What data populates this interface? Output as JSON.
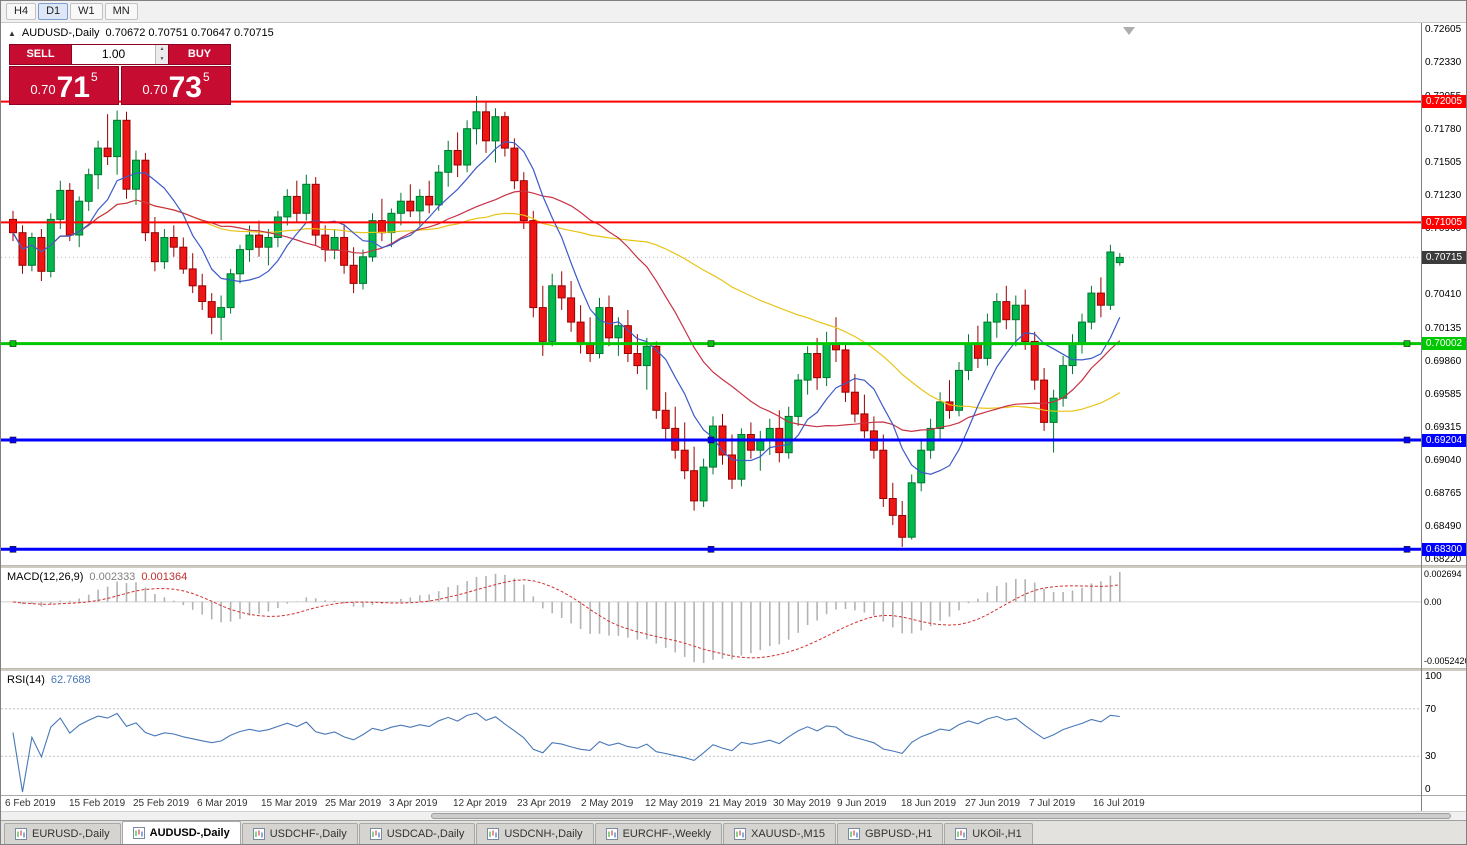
{
  "toolbar": {
    "timeframes": [
      "H4",
      "D1",
      "W1",
      "MN"
    ],
    "active": "D1"
  },
  "chart": {
    "collapse_glyph": "▲",
    "symbol_title": "AUDUSD-,Daily",
    "ohlc": "0.70672 0.70751 0.70647 0.70715"
  },
  "trade_panel": {
    "sell_label": "SELL",
    "buy_label": "BUY",
    "volume": "1.00",
    "sell_price": {
      "prefix": "0.70",
      "big": "71",
      "sup": "5"
    },
    "buy_price": {
      "prefix": "0.70",
      "big": "73",
      "sup": "5"
    },
    "panel_color": "#c60c30"
  },
  "price_axis": {
    "labels": [
      "0.72605",
      "0.72330",
      "0.72055",
      "0.71780",
      "0.71505",
      "0.71230",
      "0.70960",
      "0.70685",
      "0.70410",
      "0.70135",
      "0.69860",
      "0.69585",
      "0.69315",
      "0.69040",
      "0.68765",
      "0.68490",
      "0.68220"
    ]
  },
  "hlines": [
    {
      "label": "0.72005",
      "price": 0.72005,
      "color": "#FF0000",
      "width": 2,
      "handles": false
    },
    {
      "label": "0.71005",
      "price": 0.71005,
      "color": "#FF0000",
      "width": 2,
      "handles": false
    },
    {
      "label": "0.70002",
      "price": 0.70002,
      "color": "#00C800",
      "width": 3,
      "handles": true
    },
    {
      "label": "0.69204",
      "price": 0.69204,
      "color": "#0000FF",
      "width": 3,
      "handles": true
    },
    {
      "label": "0.68300",
      "price": 0.683,
      "color": "#0000FF",
      "width": 3,
      "handles": true
    }
  ],
  "current_price": {
    "label": "0.70715",
    "value": 0.70715,
    "badge_color": "#3c3c3c"
  },
  "indicators": {
    "macd": {
      "name": "MACD(12,26,9)",
      "main": "0.002333",
      "signal": "0.001364",
      "axis_top": "0.002694",
      "axis_zero": "0.00",
      "axis_bottom": "-0.0052420"
    },
    "rsi": {
      "name": "RSI(14)",
      "value": "62.7688",
      "axis": [
        "100",
        "70",
        "30",
        "0"
      ],
      "levels": [
        70,
        30
      ]
    }
  },
  "time_axis": [
    "6 Feb 2019",
    "15 Feb 2019",
    "25 Feb 2019",
    "6 Mar 2019",
    "15 Mar 2019",
    "25 Mar 2019",
    "3 Apr 2019",
    "12 Apr 2019",
    "23 Apr 2019",
    "2 May 2019",
    "12 May 2019",
    "21 May 2019",
    "30 May 2019",
    "9 Jun 2019",
    "18 Jun 2019",
    "27 Jun 2019",
    "7 Jul 2019",
    "16 Jul 2019"
  ],
  "tabs": [
    {
      "label": "EURUSD-,Daily",
      "active": false
    },
    {
      "label": "AUDUSD-,Daily",
      "active": true
    },
    {
      "label": "USDCHF-,Daily",
      "active": false
    },
    {
      "label": "USDCAD-,Daily",
      "active": false
    },
    {
      "label": "USDCNH-,Daily",
      "active": false
    },
    {
      "label": "EURCHF-,Weekly",
      "active": false
    },
    {
      "label": "XAUUSD-,M15",
      "active": false
    },
    {
      "label": "GBPUSD-,H1",
      "active": false
    },
    {
      "label": "UKOil-,H1",
      "active": false
    }
  ],
  "colors": {
    "bull": "#00B84C",
    "bull_border": "#00772E",
    "bear": "#EE1515",
    "bear_border": "#990000",
    "ma_fast": "#3C5AC8",
    "ma_mid": "#C83245",
    "ma_slow": "#E8C419",
    "macd_hist": "#B3B3B3",
    "macd_signal": "#D03030",
    "rsi": "#4878B8"
  },
  "chart_data": {
    "type": "candlestick",
    "symbol": "AUDUSD",
    "timeframe": "Daily",
    "price_range": {
      "min": 0.6817,
      "max": 0.72655
    },
    "ma": {
      "fast": 8,
      "mid": 20,
      "slow": 45
    },
    "macd_params": [
      12,
      26,
      9
    ],
    "rsi_period": 14,
    "hline_levels": [
      0.72005,
      0.71005,
      0.70002,
      0.69204,
      0.683
    ],
    "candles": [
      [
        0.7103,
        0.711,
        0.7085,
        0.7092
      ],
      [
        0.7092,
        0.7098,
        0.7058,
        0.7065
      ],
      [
        0.7065,
        0.7092,
        0.706,
        0.7088
      ],
      [
        0.7088,
        0.7095,
        0.7052,
        0.706
      ],
      [
        0.706,
        0.7108,
        0.7055,
        0.7103
      ],
      [
        0.7103,
        0.7135,
        0.7095,
        0.7127
      ],
      [
        0.7127,
        0.7133,
        0.7085,
        0.709
      ],
      [
        0.709,
        0.7122,
        0.708,
        0.7118
      ],
      [
        0.7118,
        0.7145,
        0.711,
        0.714
      ],
      [
        0.714,
        0.7168,
        0.7128,
        0.7162
      ],
      [
        0.7162,
        0.719,
        0.7148,
        0.7155
      ],
      [
        0.7155,
        0.7193,
        0.714,
        0.7185
      ],
      [
        0.7185,
        0.7192,
        0.712,
        0.7128
      ],
      [
        0.7128,
        0.716,
        0.7115,
        0.7152
      ],
      [
        0.7152,
        0.7158,
        0.7085,
        0.7092
      ],
      [
        0.7092,
        0.7105,
        0.706,
        0.7068
      ],
      [
        0.7068,
        0.7095,
        0.7062,
        0.7088
      ],
      [
        0.7088,
        0.7098,
        0.7072,
        0.708
      ],
      [
        0.708,
        0.7088,
        0.7058,
        0.7062
      ],
      [
        0.7062,
        0.7075,
        0.7042,
        0.7048
      ],
      [
        0.7048,
        0.7058,
        0.7028,
        0.7035
      ],
      [
        0.7035,
        0.7042,
        0.7008,
        0.7022
      ],
      [
        0.7022,
        0.704,
        0.7003,
        0.703
      ],
      [
        0.703,
        0.7062,
        0.7025,
        0.7058
      ],
      [
        0.7058,
        0.7082,
        0.705,
        0.7078
      ],
      [
        0.7078,
        0.7098,
        0.7068,
        0.709
      ],
      [
        0.709,
        0.7102,
        0.7072,
        0.708
      ],
      [
        0.708,
        0.7095,
        0.7065,
        0.7088
      ],
      [
        0.7088,
        0.711,
        0.708,
        0.7105
      ],
      [
        0.7105,
        0.7128,
        0.7098,
        0.7122
      ],
      [
        0.7122,
        0.7135,
        0.71,
        0.7108
      ],
      [
        0.7108,
        0.714,
        0.7102,
        0.7132
      ],
      [
        0.7132,
        0.7138,
        0.7082,
        0.709
      ],
      [
        0.709,
        0.7098,
        0.7068,
        0.7078
      ],
      [
        0.7078,
        0.7095,
        0.707,
        0.7088
      ],
      [
        0.7088,
        0.7098,
        0.7058,
        0.7065
      ],
      [
        0.7065,
        0.708,
        0.7042,
        0.705
      ],
      [
        0.705,
        0.7078,
        0.7045,
        0.7072
      ],
      [
        0.7072,
        0.7108,
        0.7068,
        0.7102
      ],
      [
        0.7102,
        0.712,
        0.7085,
        0.7092
      ],
      [
        0.7092,
        0.7112,
        0.708,
        0.7108
      ],
      [
        0.7108,
        0.7125,
        0.7098,
        0.7118
      ],
      [
        0.7118,
        0.7132,
        0.7105,
        0.711
      ],
      [
        0.711,
        0.7128,
        0.7098,
        0.7122
      ],
      [
        0.7122,
        0.7135,
        0.7108,
        0.7115
      ],
      [
        0.7115,
        0.7148,
        0.711,
        0.7142
      ],
      [
        0.7142,
        0.7168,
        0.713,
        0.716
      ],
      [
        0.716,
        0.7175,
        0.7138,
        0.7148
      ],
      [
        0.7148,
        0.7185,
        0.7142,
        0.7178
      ],
      [
        0.7178,
        0.7205,
        0.7165,
        0.7192
      ],
      [
        0.7192,
        0.72,
        0.7158,
        0.7168
      ],
      [
        0.7168,
        0.7195,
        0.715,
        0.7188
      ],
      [
        0.7188,
        0.7192,
        0.7155,
        0.7162
      ],
      [
        0.7162,
        0.717,
        0.7128,
        0.7135
      ],
      [
        0.7135,
        0.7142,
        0.7095,
        0.7102
      ],
      [
        0.7102,
        0.711,
        0.7022,
        0.703
      ],
      [
        0.703,
        0.7048,
        0.699,
        0.7002
      ],
      [
        0.7002,
        0.7058,
        0.6998,
        0.7048
      ],
      [
        0.7048,
        0.706,
        0.7028,
        0.7038
      ],
      [
        0.7038,
        0.7052,
        0.701,
        0.7018
      ],
      [
        0.7018,
        0.7032,
        0.6992,
        0.7
      ],
      [
        0.7,
        0.7022,
        0.6985,
        0.6992
      ],
      [
        0.6992,
        0.7038,
        0.6988,
        0.703
      ],
      [
        0.703,
        0.704,
        0.6998,
        0.7005
      ],
      [
        0.7005,
        0.7022,
        0.699,
        0.7015
      ],
      [
        0.7015,
        0.7028,
        0.6985,
        0.6992
      ],
      [
        0.6992,
        0.7008,
        0.6975,
        0.6982
      ],
      [
        0.6982,
        0.7005,
        0.6962,
        0.6998
      ],
      [
        0.6998,
        0.7002,
        0.6938,
        0.6945
      ],
      [
        0.6945,
        0.696,
        0.692,
        0.693
      ],
      [
        0.693,
        0.6948,
        0.6905,
        0.6912
      ],
      [
        0.6912,
        0.6935,
        0.6888,
        0.6895
      ],
      [
        0.6895,
        0.6915,
        0.6862,
        0.687
      ],
      [
        0.687,
        0.6905,
        0.6865,
        0.6898
      ],
      [
        0.6898,
        0.694,
        0.6892,
        0.6932
      ],
      [
        0.6932,
        0.6942,
        0.69,
        0.6908
      ],
      [
        0.6908,
        0.6925,
        0.688,
        0.6888
      ],
      [
        0.6888,
        0.693,
        0.6882,
        0.6925
      ],
      [
        0.6925,
        0.6935,
        0.6905,
        0.6912
      ],
      [
        0.6912,
        0.6928,
        0.6895,
        0.692
      ],
      [
        0.692,
        0.6938,
        0.6908,
        0.693
      ],
      [
        0.693,
        0.6945,
        0.6902,
        0.691
      ],
      [
        0.691,
        0.6948,
        0.6905,
        0.694
      ],
      [
        0.694,
        0.6975,
        0.6932,
        0.697
      ],
      [
        0.697,
        0.6998,
        0.6958,
        0.6992
      ],
      [
        0.6992,
        0.7005,
        0.6962,
        0.6972
      ],
      [
        0.6972,
        0.701,
        0.6965,
        0.7
      ],
      [
        0.7,
        0.7022,
        0.6985,
        0.6995
      ],
      [
        0.6995,
        0.7,
        0.6952,
        0.696
      ],
      [
        0.696,
        0.6975,
        0.6935,
        0.6942
      ],
      [
        0.6942,
        0.6958,
        0.6922,
        0.6928
      ],
      [
        0.6928,
        0.694,
        0.6905,
        0.6912
      ],
      [
        0.6912,
        0.6925,
        0.6865,
        0.6872
      ],
      [
        0.6872,
        0.6885,
        0.685,
        0.6858
      ],
      [
        0.6858,
        0.687,
        0.6832,
        0.684
      ],
      [
        0.684,
        0.6892,
        0.6838,
        0.6885
      ],
      [
        0.6885,
        0.692,
        0.6878,
        0.6912
      ],
      [
        0.6912,
        0.6938,
        0.6905,
        0.693
      ],
      [
        0.693,
        0.696,
        0.692,
        0.6952
      ],
      [
        0.6952,
        0.697,
        0.6938,
        0.6945
      ],
      [
        0.6945,
        0.6985,
        0.694,
        0.6978
      ],
      [
        0.6978,
        0.7008,
        0.697,
        0.7
      ],
      [
        0.7,
        0.7015,
        0.698,
        0.6988
      ],
      [
        0.6988,
        0.7025,
        0.6982,
        0.7018
      ],
      [
        0.7018,
        0.7042,
        0.7005,
        0.7035
      ],
      [
        0.7035,
        0.7048,
        0.7012,
        0.702
      ],
      [
        0.702,
        0.704,
        0.6998,
        0.7032
      ],
      [
        0.7032,
        0.7045,
        0.6995,
        0.7002
      ],
      [
        0.7002,
        0.701,
        0.6962,
        0.697
      ],
      [
        0.697,
        0.698,
        0.6928,
        0.6935
      ],
      [
        0.6935,
        0.6962,
        0.691,
        0.6955
      ],
      [
        0.6955,
        0.699,
        0.6948,
        0.6982
      ],
      [
        0.6982,
        0.7008,
        0.6975,
        0.7
      ],
      [
        0.7,
        0.7025,
        0.6992,
        0.7018
      ],
      [
        0.7018,
        0.7048,
        0.7012,
        0.7042
      ],
      [
        0.7042,
        0.7055,
        0.7022,
        0.7032
      ],
      [
        0.7032,
        0.7082,
        0.7028,
        0.7076
      ],
      [
        0.70672,
        0.70751,
        0.70647,
        0.70715
      ]
    ]
  }
}
